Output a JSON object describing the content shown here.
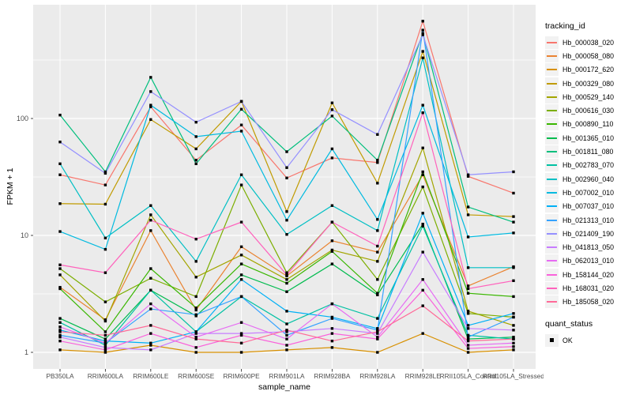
{
  "chart_data": {
    "type": "line",
    "title": "",
    "xlabel": "sample_name",
    "ylabel": "FPKM + 1",
    "y_scale": "log10",
    "y_ticks": [
      1,
      10,
      100
    ],
    "y_minor_ticks_log10": [
      0.5,
      1.5,
      2.5
    ],
    "ylim_log10": [
      -0.14,
      2.98
    ],
    "grid": "on",
    "legend_position": "right",
    "categories": [
      "PB350LA",
      "RRIM600LA",
      "RRIM600LE",
      "RRIM600SE",
      "RRIM600PE",
      "RRIM901LA",
      "RRIM928BA",
      "RRIM928LA",
      "RRIM928LE",
      "RRII105LA_Control",
      "RRII105LA_Stressed"
    ],
    "series": [
      {
        "id": "Hb_000038_020",
        "color": "#F8766D",
        "values": [
          33,
          27,
          126,
          44,
          88,
          31,
          46,
          42,
          680,
          32,
          23
        ]
      },
      {
        "id": "Hb_000058_080",
        "color": "#EA8331",
        "values": [
          3.6,
          1.9,
          11,
          2.3,
          8,
          4.5,
          9,
          7.2,
          33,
          3.7,
          5.4
        ]
      },
      {
        "id": "Hb_000172_620",
        "color": "#D89000",
        "values": [
          1.05,
          1.0,
          1.15,
          1.0,
          1.0,
          1.05,
          1.1,
          1.0,
          1.45,
          1.0,
          1.05
        ]
      },
      {
        "id": "Hb_000329_080",
        "color": "#C09B00",
        "values": [
          18.7,
          18.5,
          98,
          55,
          140,
          16,
          136,
          28,
          375,
          15,
          14.5
        ]
      },
      {
        "id": "Hb_000529_140",
        "color": "#A3A500",
        "values": [
          4.6,
          1.85,
          15,
          4.4,
          6.8,
          4.2,
          7.5,
          6.0,
          56,
          2.25,
          1.7
        ]
      },
      {
        "id": "Hb_000616_030",
        "color": "#7CAE00",
        "values": [
          5.2,
          2.7,
          4.3,
          3.0,
          27,
          4.8,
          13,
          4.2,
          26,
          2.15,
          2.0
        ]
      },
      {
        "id": "Hb_000890_110",
        "color": "#39B600",
        "values": [
          3.5,
          1.5,
          5.2,
          2.4,
          5.7,
          3.9,
          7.3,
          3.2,
          35,
          3.2,
          3.0
        ]
      },
      {
        "id": "Hb_001365_010",
        "color": "#00BB4E",
        "values": [
          1.95,
          1.3,
          3.4,
          2.05,
          4.6,
          3.3,
          5.7,
          3.1,
          12.5,
          1.3,
          1.35
        ]
      },
      {
        "id": "Hb_001811_080",
        "color": "#00BF7D",
        "values": [
          107,
          35,
          225,
          41,
          120,
          52,
          105,
          44,
          535,
          17.5,
          13
        ]
      },
      {
        "id": "Hb_002783_070",
        "color": "#00C1A3",
        "values": [
          1.8,
          1.15,
          3.4,
          1.5,
          3.0,
          1.75,
          2.6,
          1.95,
          12,
          1.4,
          1.3
        ]
      },
      {
        "id": "Hb_002960_040",
        "color": "#00BFC4",
        "values": [
          41,
          9.5,
          18,
          6.0,
          33,
          10.2,
          18,
          11,
          330,
          5.3,
          5.3
        ]
      },
      {
        "id": "Hb_007002_010",
        "color": "#00BAE0",
        "values": [
          10.8,
          7.6,
          130,
          70,
          78,
          13.5,
          55,
          13.7,
          130,
          9.7,
          10.5
        ]
      },
      {
        "id": "Hb_007037_010",
        "color": "#00B0F6",
        "values": [
          1.55,
          1.25,
          1.2,
          1.5,
          4.2,
          2.25,
          2.0,
          1.6,
          15.5,
          1.7,
          2.15
        ]
      },
      {
        "id": "Hb_021313_010",
        "color": "#35A2FF",
        "values": [
          1.4,
          1.2,
          2.35,
          2.1,
          3.0,
          1.4,
          1.95,
          1.55,
          570,
          1.35,
          2.0
        ]
      },
      {
        "id": "Hb_021409_190",
        "color": "#9590FF",
        "values": [
          63,
          34,
          170,
          93,
          140,
          38,
          119,
          73,
          520,
          33,
          35
        ]
      },
      {
        "id": "Hb_041813_050",
        "color": "#C77CFF",
        "values": [
          1.35,
          1.1,
          1.05,
          1.45,
          1.45,
          1.5,
          1.6,
          1.45,
          7.2,
          1.6,
          1.55
        ]
      },
      {
        "id": "Hb_062013_010",
        "color": "#E76BF3",
        "values": [
          1.65,
          1.2,
          2.6,
          1.35,
          1.8,
          1.3,
          2.6,
          1.35,
          4.2,
          1.15,
          1.2
        ]
      },
      {
        "id": "Hb_158144_020",
        "color": "#FA62DB",
        "values": [
          1.25,
          1.05,
          1.45,
          1.1,
          1.4,
          1.15,
          1.45,
          1.3,
          3.4,
          1.08,
          1.12
        ]
      },
      {
        "id": "Hb_168031_020",
        "color": "#FF62BC",
        "values": [
          5.6,
          4.8,
          13.5,
          9.3,
          13,
          4.6,
          13,
          8.1,
          112,
          3.5,
          4.1
        ]
      },
      {
        "id": "Hb_185058_020",
        "color": "#FF6A98",
        "values": [
          1.5,
          1.4,
          1.7,
          1.3,
          1.2,
          1.55,
          1.25,
          1.5,
          2.5,
          1.25,
          1.3
        ]
      }
    ],
    "legend": {
      "color_legend_title": "tracking_id",
      "shape_legend_title": "quant_status",
      "shape_legend_value": "OK"
    },
    "style": {
      "panel_bg": "#EBEBEB",
      "grid_color": "#FFFFFF",
      "axis_text_color": "#4D4D4D",
      "tick_color": "#333333",
      "marker_color": "#000000",
      "marker_shape": "square",
      "legend_key_bg": "#F2F2F2"
    }
  }
}
